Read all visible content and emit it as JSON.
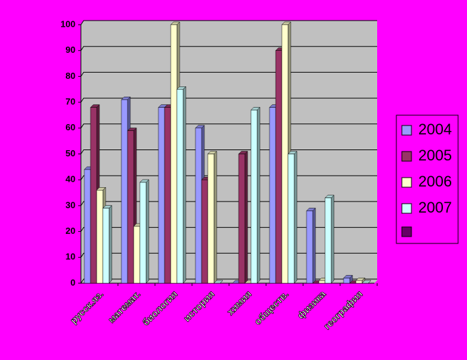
{
  "chart_data": {
    "type": "bar",
    "categories": [
      "русск.яз.",
      "математ.",
      "биология",
      "история",
      "химия",
      "обществ.",
      "физика",
      "география"
    ],
    "series": [
      {
        "name": "2004",
        "color": "#9999ff",
        "values": [
          44,
          71,
          68,
          60,
          0,
          68,
          28,
          2
        ]
      },
      {
        "name": "2005",
        "color": "#993366",
        "values": [
          68,
          59,
          68,
          40,
          50,
          90,
          0,
          0
        ]
      },
      {
        "name": "2006",
        "color": "#ffffcc",
        "values": [
          36,
          22,
          100,
          50,
          0,
          100,
          1,
          1
        ]
      },
      {
        "name": "2007",
        "color": "#ccffff",
        "values": [
          29,
          39,
          75,
          0,
          67,
          50,
          33,
          0
        ]
      }
    ],
    "ylim": [
      0,
      100
    ],
    "yticks": [
      0,
      10,
      20,
      30,
      40,
      50,
      60,
      70,
      80,
      90,
      100
    ],
    "grid": true,
    "legend": "right"
  }
}
